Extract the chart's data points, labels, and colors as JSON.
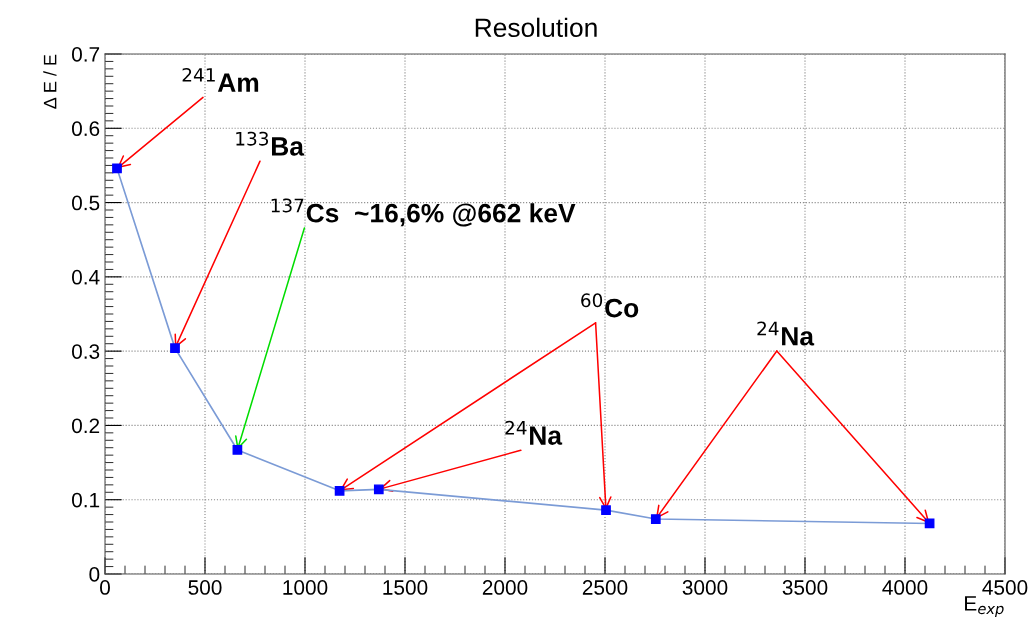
{
  "chart_data": {
    "type": "line",
    "title": "Resolution",
    "xlabel": "E$_{exp}$",
    "ylabel": "Δ E / E",
    "x": [
      60,
      350,
      662,
      1173,
      1369,
      2505,
      2754,
      4123
    ],
    "series": [
      {
        "color": "#7b9bd6",
        "values": [
          0.546,
          0.304,
          0.167,
          0.112,
          0.114,
          0.086,
          0.074,
          0.068
        ]
      }
    ],
    "marker": "square",
    "line_style": "solid",
    "xlim": [
      0,
      4500
    ],
    "xticks": [
      0,
      500,
      1000,
      1500,
      2000,
      2500,
      3000,
      3500,
      4000,
      4500
    ],
    "ylim": [
      0,
      0.7
    ],
    "yticks": [
      0,
      0.1,
      0.2,
      0.3,
      0.4,
      0.5,
      0.6,
      0.7
    ],
    "grid": true,
    "annotations": [
      {
        "text": "$^{241}$Am",
        "x": 60,
        "y": 0.546
      },
      {
        "text": "$^{133}$Ba",
        "x": 350,
        "y": 0.304
      },
      {
        "text": "$^{137}$Cs  ~16,6% @662 keV",
        "x": 662,
        "y": 0.167
      },
      {
        "text": "$^{60}$Co",
        "x": 1173,
        "y": 0.112
      },
      {
        "text": "$^{24}$Na",
        "x": 1369,
        "y": 0.114
      },
      {
        "text": "$^{24}$Na",
        "x": 2754,
        "y": 0.074
      }
    ]
  }
}
